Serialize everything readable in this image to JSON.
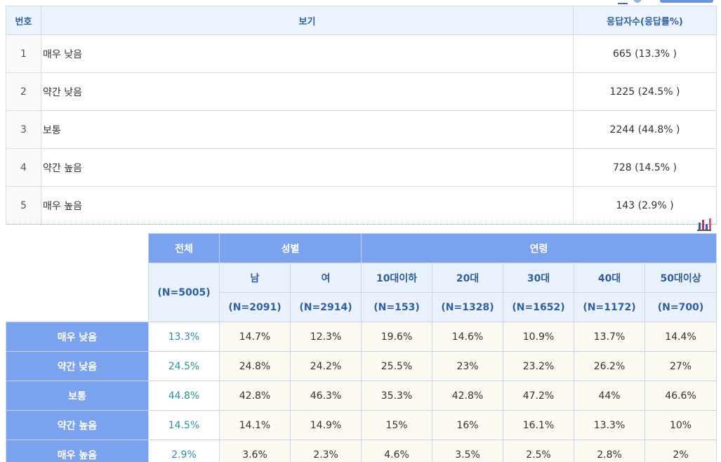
{
  "answers_table": {
    "headers": {
      "number": "번호",
      "option": "보기",
      "count": "응답자수(응답률%)"
    },
    "rows": [
      {
        "number": "1",
        "option": "매우 낮음",
        "count": "665 (13.3% )"
      },
      {
        "number": "2",
        "option": "약간 낮음",
        "count": "1225 (24.5% )"
      },
      {
        "number": "3",
        "option": "보통",
        "count": "2244 (44.8% )"
      },
      {
        "number": "4",
        "option": "약간 높음",
        "count": "728 (14.5% )"
      },
      {
        "number": "5",
        "option": "매우 높음",
        "count": "143 (2.9% )"
      }
    ]
  },
  "chart_icon": "bar-chart-icon",
  "cross_table": {
    "group_headers": {
      "total": "전체",
      "gender": "성별",
      "age": "연령"
    },
    "total_n": "(N=5005)",
    "columns": [
      {
        "label": "남",
        "n": "(N=2091)"
      },
      {
        "label": "여",
        "n": "(N=2914)"
      },
      {
        "label": "10대이하",
        "n": "(N=153)"
      },
      {
        "label": "20대",
        "n": "(N=1328)"
      },
      {
        "label": "30대",
        "n": "(N=1652)"
      },
      {
        "label": "40대",
        "n": "(N=1172)"
      },
      {
        "label": "50대이상",
        "n": "(N=700)"
      }
    ],
    "rows": [
      {
        "label": "매우 낮음",
        "total": "13.3%",
        "values": [
          "14.7%",
          "12.3%",
          "19.6%",
          "14.6%",
          "10.9%",
          "13.7%",
          "14.4%"
        ]
      },
      {
        "label": "약간 낮음",
        "total": "24.5%",
        "values": [
          "24.8%",
          "24.2%",
          "25.5%",
          "23%",
          "23.2%",
          "26.2%",
          "27%"
        ]
      },
      {
        "label": "보통",
        "total": "44.8%",
        "values": [
          "42.8%",
          "46.3%",
          "35.3%",
          "42.8%",
          "47.2%",
          "44%",
          "46.6%"
        ]
      },
      {
        "label": "약간 높음",
        "total": "14.5%",
        "values": [
          "14.1%",
          "14.9%",
          "15%",
          "16%",
          "16.1%",
          "13.3%",
          "10%"
        ]
      },
      {
        "label": "매우 높음",
        "total": "2.9%",
        "values": [
          "3.6%",
          "2.3%",
          "4.6%",
          "3.5%",
          "2.5%",
          "2.8%",
          "2%"
        ]
      }
    ]
  },
  "colors": {
    "header_blue": "#7aa2ef",
    "header_text": "#2f5fa0",
    "total_value_text": "#2e8fa4",
    "value_cell_bg": "#fdfaf1"
  }
}
